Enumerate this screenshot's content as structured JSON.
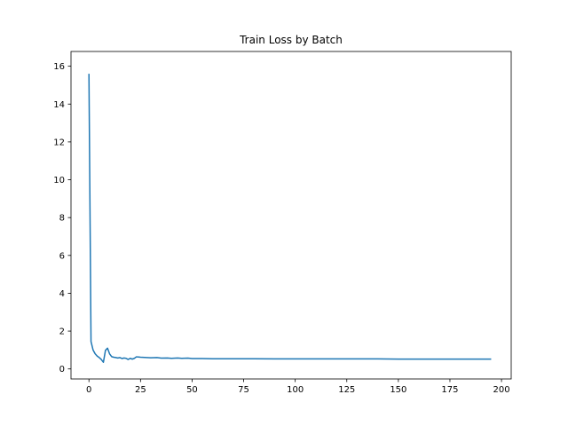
{
  "chart_data": {
    "type": "line",
    "title": "Train Loss by Batch",
    "xlabel": "",
    "ylabel": "",
    "xlim": [
      -8.7,
      204.7
    ],
    "ylim": [
      -0.53,
      16.78
    ],
    "x_ticks": [
      0,
      25,
      50,
      75,
      100,
      125,
      150,
      175,
      200
    ],
    "y_ticks": [
      0,
      2,
      4,
      6,
      8,
      10,
      12,
      14,
      16
    ],
    "grid": false,
    "series": [
      {
        "color": "#1f77b4",
        "points": [
          [
            0,
            15.6
          ],
          [
            1,
            1.45
          ],
          [
            2,
            1.0
          ],
          [
            3,
            0.8
          ],
          [
            4,
            0.68
          ],
          [
            5,
            0.6
          ],
          [
            6,
            0.5
          ],
          [
            7,
            0.35
          ],
          [
            8,
            0.98
          ],
          [
            9,
            1.1
          ],
          [
            10,
            0.8
          ],
          [
            11,
            0.65
          ],
          [
            12,
            0.62
          ],
          [
            13,
            0.6
          ],
          [
            14,
            0.58
          ],
          [
            15,
            0.6
          ],
          [
            16,
            0.55
          ],
          [
            17,
            0.58
          ],
          [
            18,
            0.56
          ],
          [
            19,
            0.5
          ],
          [
            20,
            0.56
          ],
          [
            21,
            0.52
          ],
          [
            22,
            0.56
          ],
          [
            23,
            0.64
          ],
          [
            24,
            0.63
          ],
          [
            25,
            0.62
          ],
          [
            27,
            0.61
          ],
          [
            30,
            0.59
          ],
          [
            33,
            0.6
          ],
          [
            35,
            0.57
          ],
          [
            38,
            0.58
          ],
          [
            40,
            0.56
          ],
          [
            43,
            0.58
          ],
          [
            45,
            0.56
          ],
          [
            48,
            0.57
          ],
          [
            50,
            0.55
          ],
          [
            55,
            0.55
          ],
          [
            60,
            0.54
          ],
          [
            65,
            0.54
          ],
          [
            70,
            0.54
          ],
          [
            75,
            0.54
          ],
          [
            80,
            0.535
          ],
          [
            90,
            0.53
          ],
          [
            100,
            0.53
          ],
          [
            110,
            0.53
          ],
          [
            120,
            0.53
          ],
          [
            130,
            0.53
          ],
          [
            140,
            0.53
          ],
          [
            150,
            0.52
          ],
          [
            160,
            0.52
          ],
          [
            170,
            0.52
          ],
          [
            180,
            0.52
          ],
          [
            190,
            0.52
          ],
          [
            195,
            0.52
          ]
        ]
      }
    ]
  }
}
